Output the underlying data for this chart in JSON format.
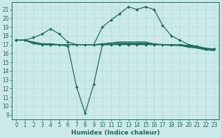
{
  "xlabel": "Humidex (Indice chaleur)",
  "bg_color": "#cce9e9",
  "grid_color": "#b8dede",
  "line_color": "#1a6b5a",
  "xlim": [
    -0.5,
    23.5
  ],
  "ylim": [
    8.5,
    21.8
  ],
  "xticks": [
    0,
    1,
    2,
    3,
    4,
    5,
    6,
    7,
    8,
    9,
    10,
    11,
    12,
    13,
    14,
    15,
    16,
    17,
    18,
    19,
    20,
    21,
    22,
    23
  ],
  "yticks": [
    9,
    10,
    11,
    12,
    13,
    14,
    15,
    16,
    17,
    18,
    19,
    20,
    21
  ],
  "series": [
    {
      "x": [
        0,
        1,
        2,
        3,
        4,
        5,
        6,
        7,
        8,
        9,
        10,
        11,
        12,
        13,
        14,
        15,
        16,
        17,
        18,
        19,
        20,
        21,
        22,
        23
      ],
      "y": [
        17.5,
        17.5,
        17.8,
        18.2,
        18.8,
        18.2,
        17.3,
        17.0,
        17.0,
        17.0,
        19.0,
        19.8,
        20.5,
        21.3,
        21.0,
        21.3,
        21.0,
        19.2,
        18.0,
        17.5,
        17.0,
        16.8,
        16.5,
        16.5
      ],
      "marker": true
    },
    {
      "x": [
        0,
        1,
        2,
        3,
        4,
        5,
        6,
        7,
        8,
        9,
        10,
        11,
        12,
        13,
        14,
        15,
        16,
        17,
        18,
        19,
        20,
        21,
        22,
        23
      ],
      "y": [
        17.5,
        17.5,
        17.2,
        17.0,
        17.0,
        17.0,
        16.8,
        12.2,
        9.2,
        12.5,
        17.0,
        17.0,
        17.0,
        17.0,
        17.0,
        17.0,
        17.0,
        17.0,
        17.0,
        17.0,
        16.8,
        16.7,
        16.5,
        16.5
      ],
      "marker": true
    },
    {
      "x": [
        0,
        1,
        2,
        3,
        4,
        5,
        6,
        7,
        8,
        9,
        10,
        11,
        12,
        13,
        14,
        15,
        16,
        17,
        18,
        19,
        20,
        21,
        22,
        23
      ],
      "y": [
        17.5,
        17.5,
        17.3,
        17.1,
        17.1,
        17.0,
        17.0,
        17.0,
        17.0,
        17.0,
        17.1,
        17.2,
        17.3,
        17.3,
        17.3,
        17.3,
        17.1,
        17.0,
        17.0,
        17.0,
        16.9,
        16.8,
        16.6,
        16.5
      ],
      "marker": false
    },
    {
      "x": [
        0,
        1,
        2,
        3,
        4,
        5,
        6,
        7,
        8,
        9,
        10,
        11,
        12,
        13,
        14,
        15,
        16,
        17,
        18,
        19,
        20,
        21,
        22,
        23
      ],
      "y": [
        17.5,
        17.5,
        17.2,
        17.0,
        17.0,
        17.0,
        17.0,
        17.0,
        17.0,
        17.0,
        17.0,
        17.1,
        17.2,
        17.2,
        17.2,
        17.2,
        17.0,
        17.0,
        17.0,
        17.0,
        16.8,
        16.7,
        16.5,
        16.4
      ],
      "marker": false
    },
    {
      "x": [
        0,
        1,
        2,
        3,
        4,
        5,
        6,
        7,
        8,
        9,
        10,
        11,
        12,
        13,
        14,
        15,
        16,
        17,
        18,
        19,
        20,
        21,
        22,
        23
      ],
      "y": [
        17.5,
        17.5,
        17.1,
        17.0,
        17.0,
        17.0,
        17.0,
        17.0,
        17.0,
        17.0,
        17.0,
        17.0,
        17.1,
        17.1,
        17.1,
        17.1,
        17.0,
        17.0,
        16.9,
        16.9,
        16.7,
        16.6,
        16.4,
        16.3
      ],
      "marker": false
    }
  ],
  "tick_fontsize": 5.5,
  "xlabel_fontsize": 6.5
}
